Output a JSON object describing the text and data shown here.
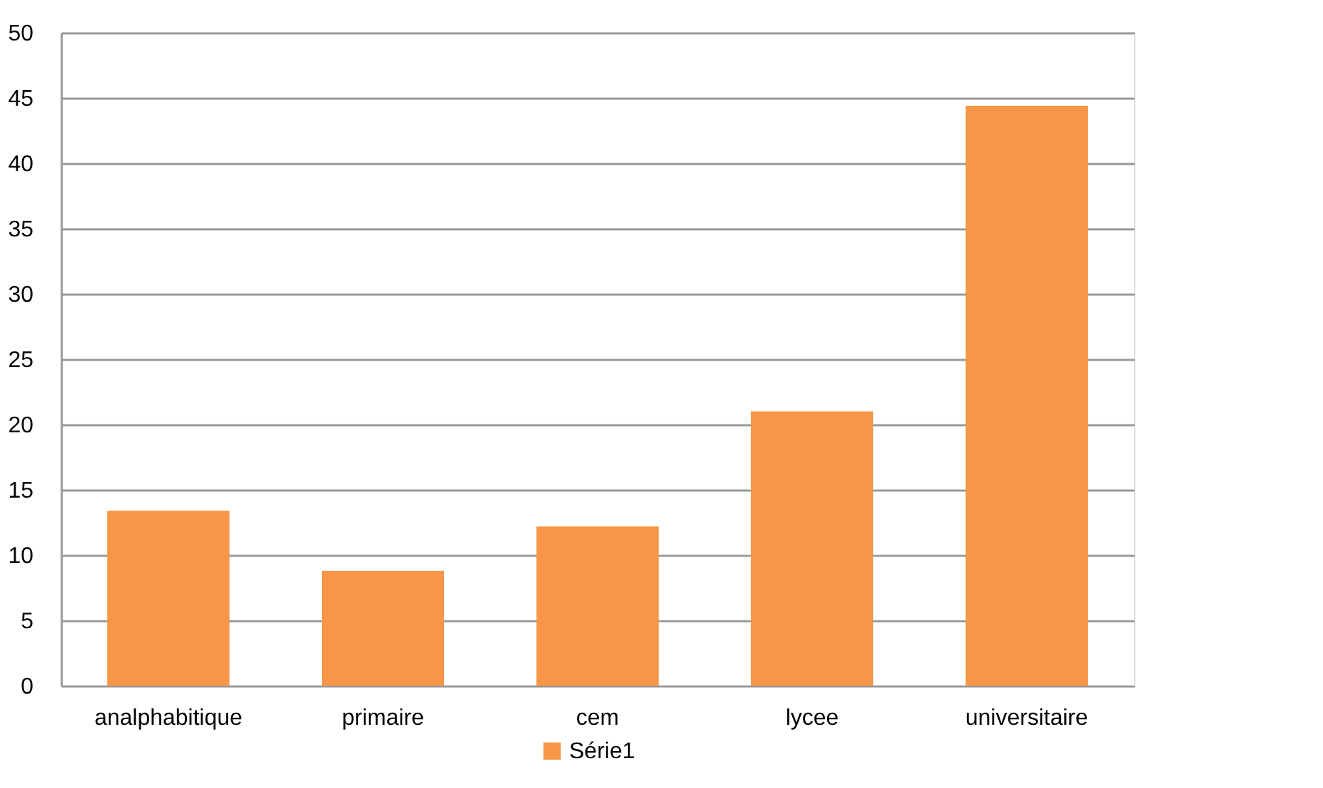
{
  "chart_data": {
    "type": "bar",
    "categories": [
      "analphabitique",
      "primaire",
      "cem",
      "lycee",
      "universitaire"
    ],
    "series": [
      {
        "name": "Série1",
        "color": "#f79646",
        "values": [
          13.4,
          8.8,
          12.2,
          21.0,
          44.4
        ]
      }
    ],
    "ylim": [
      0,
      50
    ],
    "yticks": [
      0,
      5,
      10,
      15,
      20,
      25,
      30,
      35,
      40,
      45,
      50
    ],
    "grid": "y",
    "legend": "bottom"
  }
}
